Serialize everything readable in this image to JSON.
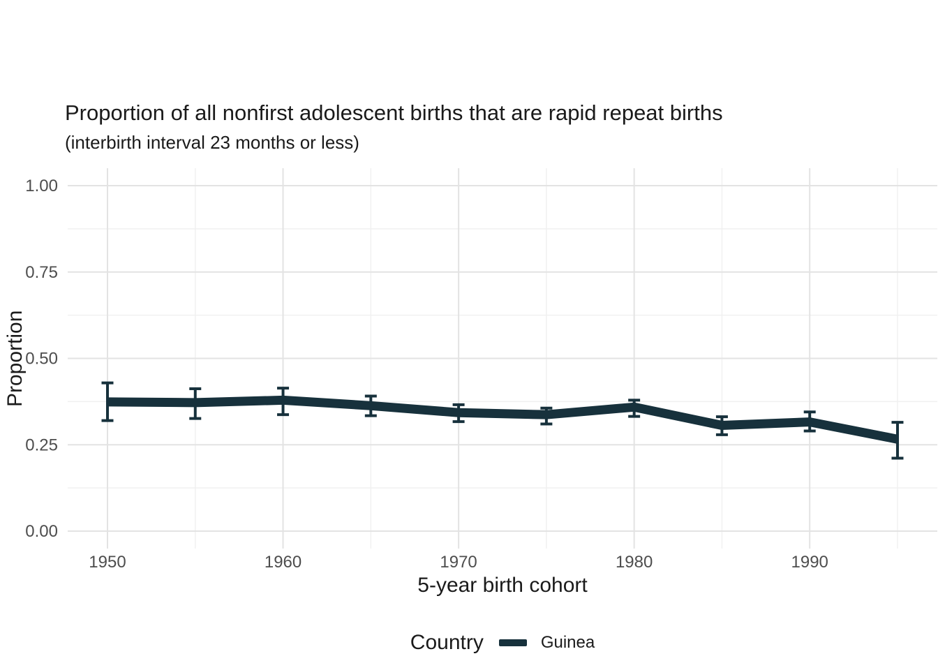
{
  "header": {
    "title": "Proportion of all nonfirst adolescent births that are rapid repeat births",
    "subtitle": "(interbirth interval 23 months or less)"
  },
  "axes": {
    "x": {
      "title": "5-year birth cohort"
    },
    "y": {
      "title": "Proportion"
    }
  },
  "legend": {
    "title": "Country",
    "entries": [
      {
        "label": "Guinea",
        "color": "#17313c"
      }
    ]
  },
  "colors": {
    "line": "#17313c",
    "grid_major": "#e3e3e3",
    "grid_minor": "#f0f0f0",
    "title_text": "#1a1a1a",
    "tick_text": "#4d4d4d"
  },
  "chart_data": {
    "type": "line",
    "title": "Proportion of all nonfirst adolescent births that are rapid repeat births",
    "subtitle": "(interbirth interval 23 months or less)",
    "xlabel": "5-year birth cohort",
    "ylabel": "Proportion",
    "xlim": [
      1947.75,
      1997.25
    ],
    "ylim": [
      0,
      1
    ],
    "grid": "major+minor",
    "legend_position": "bottom",
    "x_ticks": [
      {
        "value": 1950,
        "label": "1950"
      },
      {
        "value": 1960,
        "label": "1960"
      },
      {
        "value": 1970,
        "label": "1970"
      },
      {
        "value": 1980,
        "label": "1980"
      },
      {
        "value": 1990,
        "label": "1990"
      }
    ],
    "x_minor_gridlines": [
      1955,
      1965,
      1975,
      1985,
      1995
    ],
    "y_ticks": [
      {
        "value": 0,
        "label": "0.00"
      },
      {
        "value": 0.25,
        "label": "0.25"
      },
      {
        "value": 0.5,
        "label": "0.50"
      },
      {
        "value": 0.75,
        "label": "0.75"
      },
      {
        "value": 1,
        "label": "1.00"
      }
    ],
    "y_minor_gridlines": [
      0.125,
      0.375,
      0.625,
      0.875
    ],
    "series": [
      {
        "name": "Guinea",
        "x": [
          1950,
          1955,
          1960,
          1965,
          1970,
          1975,
          1980,
          1985,
          1990,
          1995
        ],
        "y": [
          0.374,
          0.372,
          0.379,
          0.363,
          0.343,
          0.337,
          0.359,
          0.306,
          0.316,
          0.266
        ],
        "ci_lower": [
          0.32,
          0.326,
          0.337,
          0.334,
          0.317,
          0.31,
          0.332,
          0.279,
          0.29,
          0.211
        ],
        "ci_upper": [
          0.429,
          0.412,
          0.414,
          0.391,
          0.366,
          0.356,
          0.379,
          0.331,
          0.345,
          0.315
        ]
      }
    ]
  }
}
